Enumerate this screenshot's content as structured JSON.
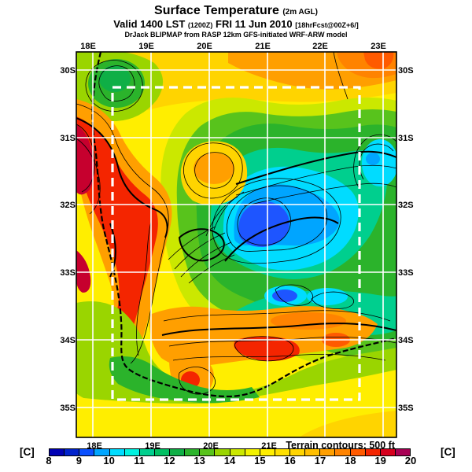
{
  "header": {
    "title": "Surface Temperature",
    "title_sub": "(2m AGL)",
    "valid_prefix": "Valid 1400 LST",
    "valid_zulu": "(1200Z)",
    "valid_date": "FRI 11 Jun 2010",
    "valid_fcst": "[18hrFcst@00Z+6/]",
    "model_line": "DrJack BLIPMAP from RASP 12km GFS-initiated WRF-ARW model"
  },
  "map": {
    "note": "Terrain contours: 500 ft",
    "axis": {
      "top": [
        "18E",
        "19E",
        "20E",
        "21E",
        "22E",
        "23E"
      ],
      "bottom": [
        "18E",
        "19E",
        "20E",
        "21E"
      ],
      "left": [
        "30S",
        "31S",
        "32S",
        "33S",
        "34S",
        "35S"
      ],
      "right": [
        "30S",
        "31S",
        "32S",
        "33S",
        "34S",
        "35S"
      ]
    }
  },
  "colorbar": {
    "unit_left": "[C]",
    "unit_right": "[C]",
    "min": 8,
    "max": 20,
    "ticks": [
      "8",
      "9",
      "10",
      "11",
      "12",
      "13",
      "14",
      "15",
      "16",
      "17",
      "18",
      "19",
      "20"
    ],
    "colors": [
      "#0000b4",
      "#0022cc",
      "#0a50ff",
      "#00a5ff",
      "#00dcff",
      "#00f2e0",
      "#00cf8e",
      "#00bf62",
      "#0faf46",
      "#2bb32b",
      "#58c31c",
      "#9ad500",
      "#cbe800",
      "#f3f300",
      "#ffee00",
      "#ffe000",
      "#ffd400",
      "#ffbf00",
      "#ff9f00",
      "#ff8300",
      "#ff5a00",
      "#f42500",
      "#d6001e",
      "#a80055"
    ]
  },
  "palette": {
    "yellow": "#ffee00",
    "gold": "#ffd400",
    "orange": "#ff9f00",
    "dkorange": "#ff8300",
    "orangered": "#ff5a00",
    "red": "#f42500",
    "crimson": "#c6002e",
    "ygreen": "#cbe800",
    "ltgreen": "#9ad500",
    "green": "#58c31c",
    "green2": "#2bb32b",
    "green3": "#0faf46",
    "teal": "#00cf8e",
    "cyan": "#00dcff",
    "skyblue": "#00a5ff",
    "royal": "#1e55ff"
  }
}
